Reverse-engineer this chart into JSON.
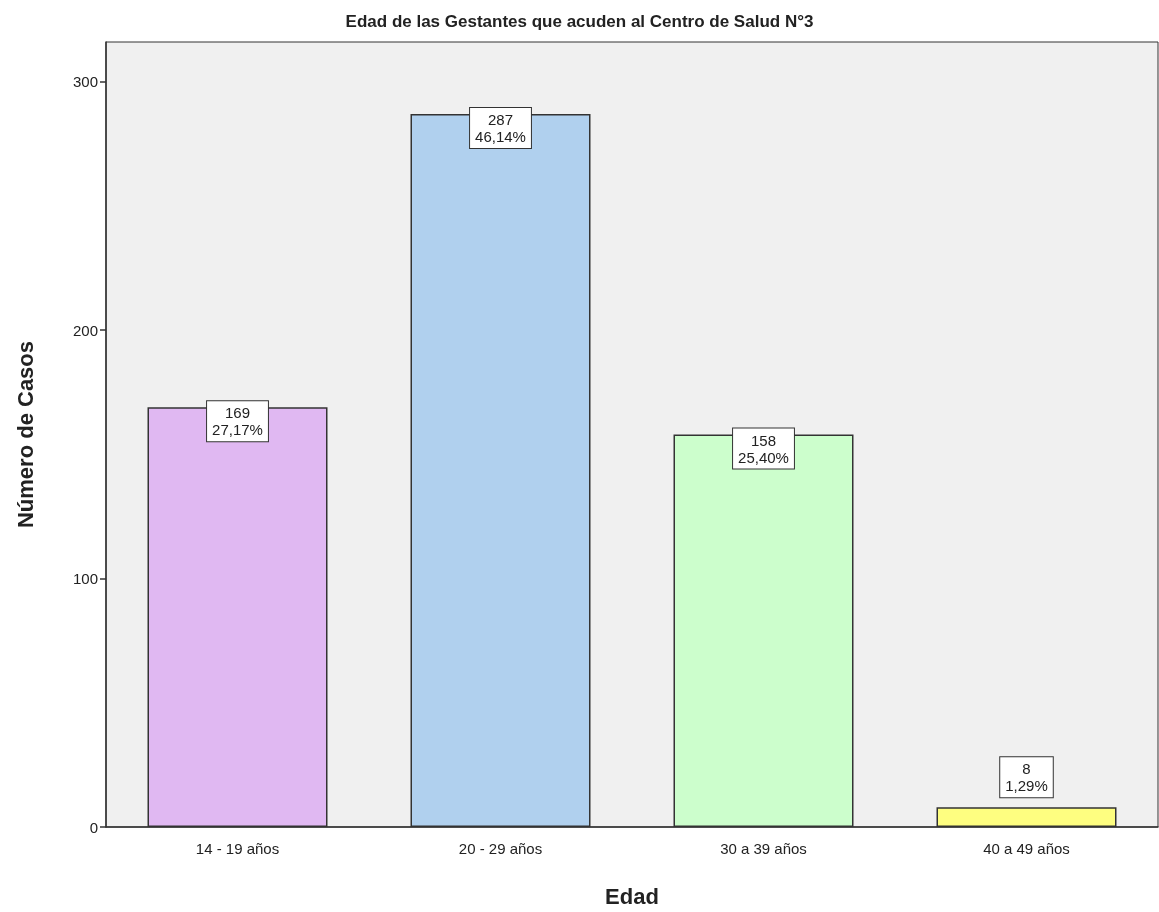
{
  "chart_data": {
    "type": "bar",
    "title": "Edad de las Gestantes que acuden al Centro de Salud N°3",
    "xlabel": "Edad",
    "ylabel": "Número de Casos",
    "categories": [
      "14 - 19 años",
      "20 - 29 años",
      "30 a 39 años",
      "40 a 49 años"
    ],
    "values": [
      169,
      287,
      158,
      8
    ],
    "colors": [
      "#e0b8f2",
      "#b0d0ee",
      "#ccfecc",
      "#fefe80"
    ],
    "value_labels": [
      "169\n27,17%",
      "287\n46,14%",
      "158\n25,40%",
      "8\n1,29%"
    ],
    "ylim": [
      0,
      316
    ],
    "yticks": [
      0,
      100,
      200,
      300
    ],
    "grid": false
  }
}
